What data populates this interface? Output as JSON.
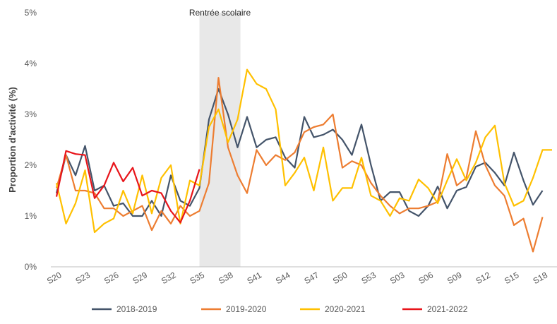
{
  "chart_data": {
    "type": "line",
    "y_label": "Proportion d'activité (%)",
    "categories": [
      "S20",
      null,
      null,
      "S23",
      null,
      null,
      "S26",
      null,
      null,
      "S29",
      null,
      null,
      "S32",
      null,
      null,
      "S35",
      null,
      null,
      "S38",
      null,
      null,
      "S41",
      null,
      null,
      "S44",
      null,
      null,
      "S47",
      null,
      null,
      "S50",
      null,
      null,
      "S53",
      null,
      null,
      "S03",
      null,
      null,
      "S06",
      null,
      null,
      "S09",
      null,
      null,
      "S12",
      null,
      null,
      "S15",
      null,
      null,
      "S18",
      null
    ],
    "series": [
      {
        "name": "2018-2019",
        "color": "#44546a",
        "values": [
          1.45,
          2.2,
          1.8,
          2.38,
          1.5,
          1.6,
          1.2,
          1.25,
          1.0,
          1.0,
          1.3,
          1.0,
          1.8,
          1.3,
          1.2,
          1.55,
          2.9,
          3.5,
          3.0,
          2.35,
          2.95,
          2.35,
          2.5,
          2.55,
          2.15,
          1.95,
          2.95,
          2.55,
          2.6,
          2.7,
          2.5,
          2.2,
          2.8,
          2.0,
          1.3,
          1.47,
          1.47,
          1.1,
          1.0,
          1.2,
          1.58,
          1.15,
          1.5,
          1.57,
          1.97,
          2.05,
          1.85,
          1.6,
          2.25,
          1.7,
          1.22,
          1.5,
          null
        ]
      },
      {
        "name": "2019-2020",
        "color": "#ed7d31",
        "values": [
          1.55,
          2.2,
          1.5,
          1.5,
          1.45,
          1.15,
          1.15,
          1.0,
          1.1,
          1.2,
          0.72,
          1.1,
          0.85,
          1.2,
          1.0,
          1.1,
          1.65,
          3.72,
          2.35,
          1.8,
          1.45,
          2.3,
          2.0,
          2.2,
          2.1,
          2.25,
          2.65,
          2.75,
          2.8,
          3.0,
          1.95,
          2.08,
          2.0,
          1.65,
          1.4,
          1.2,
          1.05,
          1.15,
          1.15,
          1.2,
          1.28,
          2.22,
          1.6,
          1.75,
          2.67,
          2.0,
          1.6,
          1.4,
          0.82,
          0.95,
          0.3,
          0.98,
          null
        ]
      },
      {
        "name": "2020-2021",
        "color": "#ffc000",
        "values": [
          1.65,
          0.85,
          1.25,
          1.9,
          0.68,
          0.85,
          0.95,
          1.5,
          1.05,
          1.8,
          1.05,
          1.75,
          2.0,
          0.85,
          1.7,
          1.6,
          2.75,
          3.1,
          2.45,
          2.9,
          3.88,
          3.6,
          3.5,
          3.1,
          1.6,
          1.85,
          2.15,
          1.5,
          2.35,
          1.3,
          1.55,
          1.55,
          2.15,
          1.4,
          1.3,
          1.0,
          1.35,
          1.3,
          1.72,
          1.55,
          1.25,
          1.7,
          2.12,
          1.7,
          2.05,
          2.55,
          2.78,
          1.65,
          1.2,
          1.3,
          1.75,
          2.3,
          2.3
        ]
      },
      {
        "name": "2021-2022",
        "color": "#e8141a",
        "values": [
          1.38,
          2.28,
          2.22,
          2.2,
          1.35,
          1.6,
          2.05,
          1.68,
          1.95,
          1.4,
          1.5,
          1.45,
          1.1,
          0.87,
          1.3,
          1.92,
          null,
          null,
          null,
          null,
          null,
          null,
          null,
          null,
          null,
          null,
          null,
          null,
          null,
          null,
          null,
          null,
          null,
          null,
          null,
          null,
          null,
          null,
          null,
          null,
          null,
          null,
          null,
          null,
          null,
          null,
          null,
          null,
          null,
          null,
          null,
          null,
          null
        ]
      }
    ],
    "band": {
      "label": "Rentrée scolaire",
      "start": 15,
      "end": 19.3
    },
    "ylim": [
      0,
      5
    ],
    "yticks": [
      {
        "value": 0,
        "label": "0%"
      },
      {
        "value": 1,
        "label": "1%"
      },
      {
        "value": 2,
        "label": "2%"
      },
      {
        "value": 3,
        "label": "3%"
      },
      {
        "value": 4,
        "label": "4%"
      },
      {
        "value": 5,
        "label": "5%"
      }
    ],
    "grid": false,
    "legend": "bottom"
  }
}
